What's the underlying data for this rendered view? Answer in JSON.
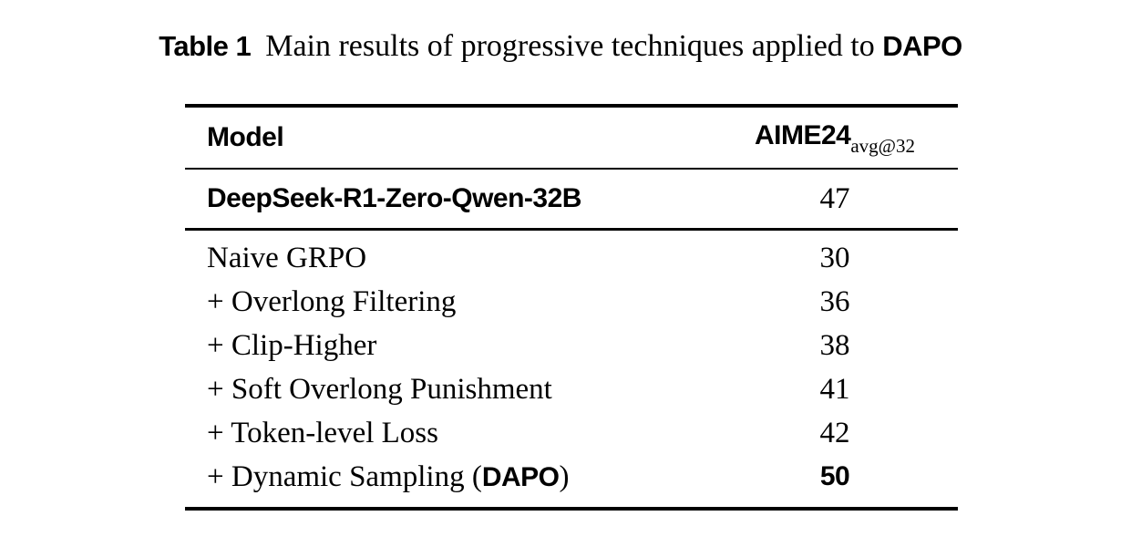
{
  "caption": {
    "tag": "Table 1",
    "text": "Main results of progressive techniques applied to",
    "emph": "DAPO"
  },
  "table": {
    "columns": [
      {
        "label": "Model"
      },
      {
        "label": "AIME24",
        "sub": "avg@32"
      }
    ],
    "baseline_row": {
      "model": "DeepSeek-R1-Zero-Qwen-32B",
      "value": "47"
    },
    "rows": [
      {
        "model": "Naive GRPO",
        "value": "30"
      },
      {
        "model": "+ Overlong Filtering",
        "value": "36"
      },
      {
        "model": "+ Clip-Higher",
        "value": "38"
      },
      {
        "model": "+ Soft Overlong Punishment",
        "value": "41"
      },
      {
        "model": "+ Token-level Loss",
        "value": "42"
      },
      {
        "model_prefix": "+ Dynamic Sampling (",
        "model_emph": "DAPO",
        "model_suffix": ")",
        "value": "50",
        "value_bold": true
      }
    ]
  },
  "chart_data": {
    "type": "table",
    "title": "Table 1  Main results of progressive techniques applied to DAPO",
    "columns": [
      "Model",
      "AIME24 avg@32"
    ],
    "rows": [
      [
        "DeepSeek-R1-Zero-Qwen-32B",
        47
      ],
      [
        "Naive GRPO",
        30
      ],
      [
        "+ Overlong Filtering",
        36
      ],
      [
        "+ Clip-Higher",
        38
      ],
      [
        "+ Soft Overlong Punishment",
        41
      ],
      [
        "+ Token-level Loss",
        42
      ],
      [
        "+ Dynamic Sampling (DAPO)",
        50
      ]
    ]
  },
  "colors": {
    "text": "#000000",
    "background": "#ffffff",
    "rule": "#000000"
  }
}
